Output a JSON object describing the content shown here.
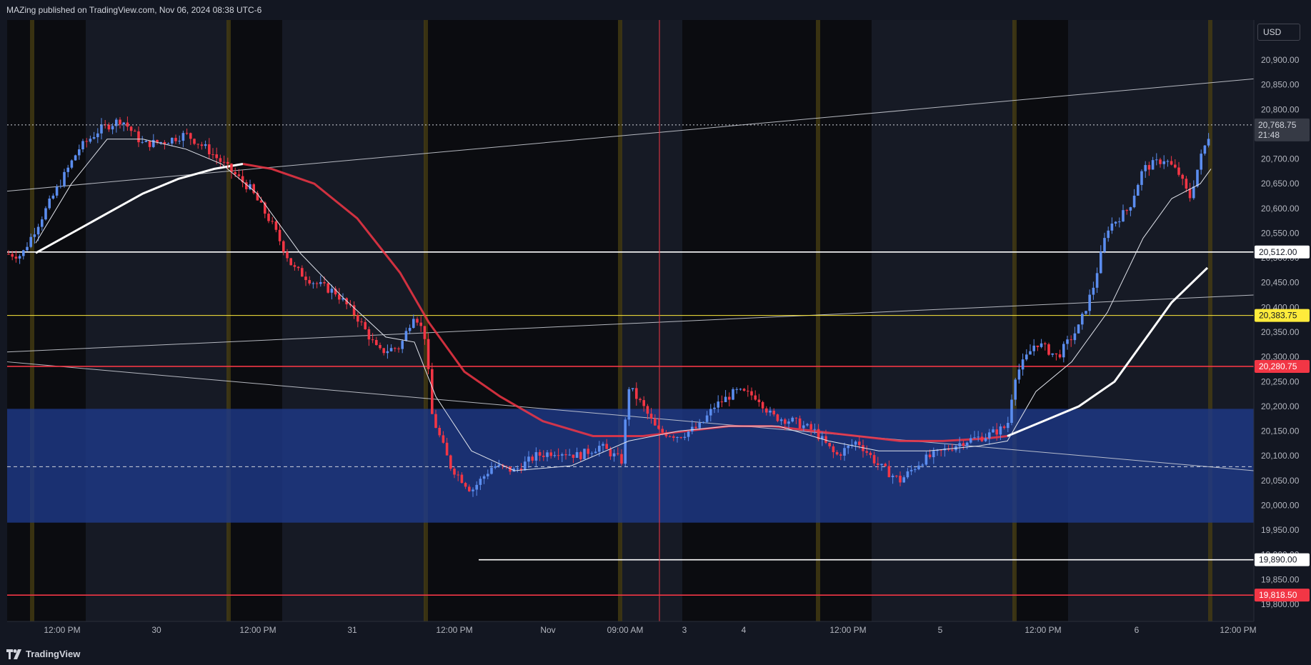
{
  "header": {
    "published": "MAZing published on TradingView.com, Nov 06, 2024 08:38 UTC-6"
  },
  "footer": {
    "brand": "TradingView"
  },
  "price_scale": {
    "currency": "USD",
    "ticks": [
      "20,900.00",
      "20,850.00",
      "20,800.00",
      "20,750.00",
      "20,700.00",
      "20,650.00",
      "20,600.00",
      "20,550.00",
      "20,500.00",
      "20,450.00",
      "20,400.00",
      "20,350.00",
      "20,300.00",
      "20,250.00",
      "20,200.00",
      "20,150.00",
      "20,100.00",
      "20,050.00",
      "20,000.00",
      "19,950.00",
      "19,900.00",
      "19,850.00",
      "19,800.00"
    ],
    "tick_values": [
      20900,
      20850,
      20800,
      20750,
      20700,
      20650,
      20600,
      20550,
      20500,
      20450,
      20400,
      20350,
      20300,
      20250,
      20200,
      20150,
      20100,
      20050,
      20000,
      19950,
      19900,
      19850,
      19800
    ],
    "current_price": "20,768.75",
    "current_price_value": 20768.75,
    "countdown": "21:48"
  },
  "levels": [
    {
      "label": "20,512.00",
      "value": 20512.0,
      "color": "#ffffff",
      "text_color": "#131722"
    },
    {
      "label": "20,383.75",
      "value": 20383.75,
      "color": "#ffeb3b",
      "text_color": "#131722"
    },
    {
      "label": "20,280.75",
      "value": 20280.75,
      "color": "#f23645",
      "text_color": "#ffffff"
    },
    {
      "label": "19,890.00",
      "value": 19890.0,
      "color": "#ffffff",
      "text_color": "#131722"
    },
    {
      "label": "19,818.50",
      "value": 19818.5,
      "color": "#f23645",
      "text_color": "#ffffff"
    }
  ],
  "zone": {
    "top": 20195,
    "bottom": 19965,
    "mid": 20078,
    "color": "#1e3a8a"
  },
  "time_axis": {
    "labels": [
      "12:00 PM",
      "30",
      "12:00 PM",
      "31",
      "12:00 PM",
      "Nov",
      "09:00 AM",
      "3",
      "4",
      "12:00 PM",
      "5",
      "12:00 PM",
      "6",
      "12:00 PM"
    ]
  },
  "colors": {
    "up": "#5b8def",
    "down": "#f23645",
    "background": "#131722",
    "session_dark": "#000000",
    "session_border": "#4a3f12",
    "crosshair": "#f23645"
  },
  "chart_data": {
    "type": "line",
    "price_anchors": [
      [
        0,
        20510
      ],
      [
        30,
        20505
      ],
      [
        50,
        20560
      ],
      [
        80,
        20640
      ],
      [
        110,
        20720
      ],
      [
        140,
        20760
      ],
      [
        170,
        20780
      ],
      [
        200,
        20730
      ],
      [
        230,
        20735
      ],
      [
        260,
        20750
      ],
      [
        290,
        20720
      ],
      [
        320,
        20680
      ],
      [
        350,
        20640
      ],
      [
        380,
        20570
      ],
      [
        410,
        20480
      ],
      [
        440,
        20450
      ],
      [
        470,
        20430
      ],
      [
        500,
        20380
      ],
      [
        530,
        20310
      ],
      [
        560,
        20320
      ],
      [
        580,
        20390
      ],
      [
        595,
        20340
      ],
      [
        605,
        20180
      ],
      [
        630,
        20080
      ],
      [
        660,
        20030
      ],
      [
        690,
        20080
      ],
      [
        720,
        20070
      ],
      [
        750,
        20100
      ],
      [
        780,
        20110
      ],
      [
        810,
        20100
      ],
      [
        840,
        20120
      ],
      [
        870,
        20090
      ],
      [
        880,
        20240
      ],
      [
        900,
        20200
      ],
      [
        920,
        20150
      ],
      [
        950,
        20140
      ],
      [
        980,
        20160
      ],
      [
        1000,
        20200
      ],
      [
        1030,
        20230
      ],
      [
        1060,
        20220
      ],
      [
        1080,
        20180
      ],
      [
        1110,
        20170
      ],
      [
        1140,
        20150
      ],
      [
        1170,
        20100
      ],
      [
        1200,
        20130
      ],
      [
        1230,
        20080
      ],
      [
        1260,
        20050
      ],
      [
        1290,
        20090
      ],
      [
        1320,
        20110
      ],
      [
        1350,
        20130
      ],
      [
        1380,
        20140
      ],
      [
        1410,
        20160
      ],
      [
        1420,
        20260
      ],
      [
        1450,
        20330
      ],
      [
        1480,
        20300
      ],
      [
        1510,
        20360
      ],
      [
        1530,
        20440
      ],
      [
        1550,
        20560
      ],
      [
        1580,
        20600
      ],
      [
        1600,
        20680
      ],
      [
        1630,
        20700
      ],
      [
        1650,
        20670
      ],
      [
        1665,
        20620
      ],
      [
        1680,
        20700
      ],
      [
        1695,
        20760
      ]
    ],
    "ma_fast": [
      [
        50,
        20530
      ],
      [
        100,
        20650
      ],
      [
        150,
        20740
      ],
      [
        200,
        20740
      ],
      [
        260,
        20720
      ],
      [
        310,
        20690
      ],
      [
        360,
        20630
      ],
      [
        420,
        20510
      ],
      [
        480,
        20420
      ],
      [
        540,
        20340
      ],
      [
        580,
        20330
      ],
      [
        610,
        20220
      ],
      [
        660,
        20110
      ],
      [
        720,
        20070
      ],
      [
        800,
        20080
      ],
      [
        880,
        20130
      ],
      [
        950,
        20150
      ],
      [
        1020,
        20160
      ],
      [
        1090,
        20160
      ],
      [
        1160,
        20130
      ],
      [
        1230,
        20110
      ],
      [
        1300,
        20110
      ],
      [
        1370,
        20120
      ],
      [
        1410,
        20130
      ],
      [
        1450,
        20230
      ],
      [
        1500,
        20290
      ],
      [
        1550,
        20390
      ],
      [
        1600,
        20540
      ],
      [
        1640,
        20620
      ],
      [
        1680,
        20650
      ],
      [
        1695,
        20680
      ]
    ],
    "ma_slow": [
      [
        50,
        20510
      ],
      [
        100,
        20550
      ],
      [
        150,
        20590
      ],
      [
        200,
        20630
      ],
      [
        250,
        20660
      ],
      [
        300,
        20680
      ],
      [
        340,
        20690
      ]
    ],
    "ma_slow_red": [
      [
        340,
        20690
      ],
      [
        380,
        20680
      ],
      [
        440,
        20650
      ],
      [
        500,
        20580
      ],
      [
        560,
        20470
      ],
      [
        600,
        20370
      ],
      [
        650,
        20270
      ],
      [
        700,
        20220
      ],
      [
        760,
        20170
      ],
      [
        830,
        20140
      ],
      [
        900,
        20140
      ],
      [
        960,
        20150
      ],
      [
        1020,
        20160
      ],
      [
        1080,
        20160
      ],
      [
        1140,
        20150
      ],
      [
        1200,
        20140
      ],
      [
        1260,
        20130
      ],
      [
        1320,
        20130
      ],
      [
        1380,
        20135
      ],
      [
        1410,
        20140
      ]
    ],
    "ma_slow_white": [
      [
        1410,
        20140
      ],
      [
        1460,
        20170
      ],
      [
        1510,
        20200
      ],
      [
        1560,
        20250
      ],
      [
        1600,
        20330
      ],
      [
        1640,
        20410
      ],
      [
        1690,
        20480
      ]
    ],
    "trendlines": [
      {
        "x1": 10,
        "y1": 20635,
        "x2": 1755,
        "y2": 20862,
        "color": "#d1d4dc"
      },
      {
        "x1": 10,
        "y1": 20310,
        "x2": 1755,
        "y2": 20425,
        "color": "#d1d4dc"
      },
      {
        "x1": 10,
        "y1": 20290,
        "x2": 1755,
        "y2": 20070,
        "color": "#d1d4dc"
      }
    ]
  }
}
